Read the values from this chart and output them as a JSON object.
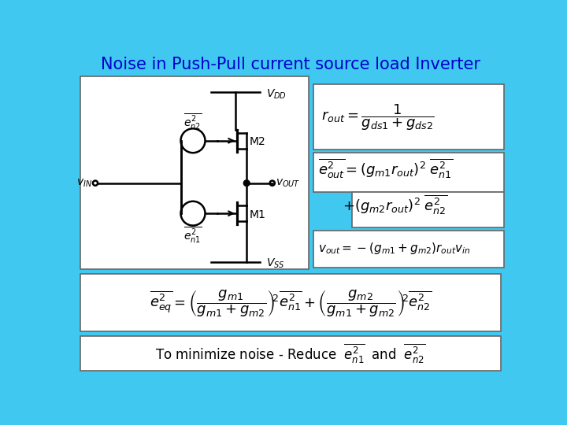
{
  "title": "Noise in Push-Pull current source load Inverter",
  "bg_color": "#40C8F0",
  "title_color": "#0000CC",
  "text_color": "#000000",
  "white_box": "#FFFFFF",
  "light_blue_box": "#A8E8F8",
  "box_border": "#666666"
}
